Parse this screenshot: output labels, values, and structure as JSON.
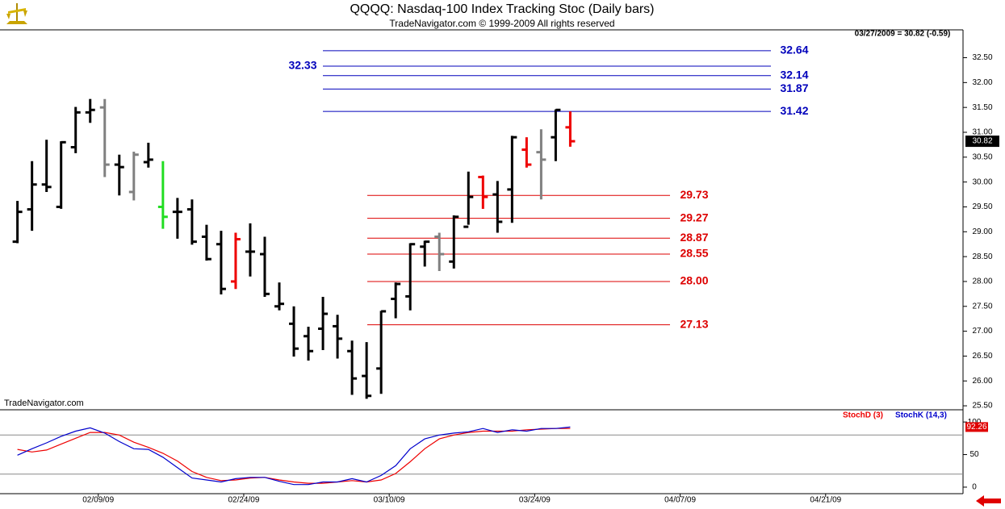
{
  "chart_data": [
    {
      "type": "ohlc",
      "title": "QQQQ:  Nasdaq-100 Index Tracking Stoc  (Daily bars)",
      "subtitle": "TradeNavigator.com © 1999-2009 All rights reserved",
      "annotations": [
        "03/27/2009 = 30.82 (-0.59)",
        "TradeNavigator.com"
      ],
      "xlim": [
        -1.2,
        65
      ],
      "ylim": [
        25.42,
        33.06
      ],
      "yticks": [
        {
          "value": 25.5,
          "label": "25.50"
        },
        {
          "value": 26,
          "label": "26.00"
        },
        {
          "value": 26.5,
          "label": "26.50"
        },
        {
          "value": 27,
          "label": "27.00"
        },
        {
          "value": 27.5,
          "label": "27.50"
        },
        {
          "value": 28,
          "label": "28.00"
        },
        {
          "value": 28.5,
          "label": "28.50"
        },
        {
          "value": 29,
          "label": "29.00"
        },
        {
          "value": 29.5,
          "label": "29.50"
        },
        {
          "value": 30,
          "label": "30.00"
        },
        {
          "value": 30.5,
          "label": "30.50"
        },
        {
          "value": 31,
          "label": "31.00"
        },
        {
          "value": 31.5,
          "label": "31.50"
        },
        {
          "value": 32,
          "label": "32.00"
        },
        {
          "value": 32.5,
          "label": "32.50"
        }
      ],
      "open": [
        28.8,
        29.45,
        29.95,
        29.5,
        30.7,
        31.4,
        31.5,
        30.35,
        29.8,
        30.4,
        29.5,
        29.4,
        29.45,
        28.9,
        28.75,
        28.0,
        28.6,
        28.55,
        27.5,
        27.15,
        26.9,
        27.05,
        27.1,
        26.6,
        26.1,
        26.25,
        27.65,
        27.7,
        28.7,
        28.9,
        28.4,
        29.1,
        30.1,
        29.75,
        29.85,
        30.65,
        30.6,
        30.9,
        31.1
      ],
      "high": [
        29.62,
        30.42,
        30.85,
        30.82,
        31.51,
        31.67,
        31.67,
        30.55,
        30.61,
        30.79,
        30.42,
        29.68,
        29.65,
        29.14,
        29.02,
        28.98,
        29.17,
        28.9,
        27.98,
        27.5,
        27.09,
        27.69,
        27.33,
        26.81,
        26.78,
        27.41,
        27.98,
        28.77,
        28.82,
        28.98,
        29.33,
        30.21,
        30.13,
        30.02,
        30.93,
        30.9,
        31.06,
        31.46,
        31.42
      ],
      "low": [
        28.77,
        29.02,
        29.8,
        29.46,
        30.58,
        31.19,
        30.1,
        29.73,
        29.63,
        30.29,
        29.06,
        28.86,
        28.74,
        28.42,
        27.74,
        27.85,
        28.1,
        27.69,
        27.42,
        26.49,
        26.41,
        26.62,
        26.45,
        25.72,
        25.64,
        25.74,
        27.26,
        27.42,
        28.3,
        28.21,
        28.26,
        29.14,
        29.46,
        28.98,
        29.18,
        30.29,
        29.65,
        30.42,
        30.71
      ],
      "close": [
        29.4,
        29.95,
        29.9,
        30.8,
        31.4,
        31.45,
        30.35,
        30.3,
        30.55,
        30.45,
        29.3,
        29.4,
        28.8,
        28.45,
        27.85,
        28.85,
        28.6,
        27.75,
        27.55,
        26.65,
        26.6,
        27.35,
        26.85,
        26.05,
        25.7,
        27.4,
        27.95,
        28.75,
        28.8,
        28.55,
        29.3,
        29.7,
        29.7,
        29.2,
        30.9,
        30.35,
        30.45,
        31.45,
        30.82
      ],
      "colors": [
        "#000000",
        "#000000",
        "#000000",
        "#000000",
        "#000000",
        "#000000",
        "#808080",
        "#000000",
        "#808080",
        "#000000",
        "#22dd22",
        "#000000",
        "#000000",
        "#000000",
        "#000000",
        "#ee0000",
        "#000000",
        "#000000",
        "#000000",
        "#000000",
        "#000000",
        "#000000",
        "#000000",
        "#000000",
        "#000000",
        "#000000",
        "#000000",
        "#000000",
        "#000000",
        "#808080",
        "#000000",
        "#000000",
        "#ee0000",
        "#000000",
        "#000000",
        "#ee0000",
        "#808080",
        "#000000",
        "#ee0000"
      ],
      "levels": [
        {
          "color": "#0000bb",
          "values": [
            32.64,
            32.33,
            32.14,
            31.87,
            31.42
          ]
        },
        {
          "color": "#dd0000",
          "values": [
            29.73,
            29.27,
            28.87,
            28.55,
            28,
            27.13
          ],
          "value_labels": [
            "29.73",
            "29.27",
            "28.87",
            "28.55",
            "28.00",
            "27.13"
          ]
        }
      ]
    },
    {
      "type": "line",
      "xlim": [
        -1.2,
        65
      ],
      "ylim": [
        -10,
        118.75
      ],
      "yticks": [
        0,
        50,
        100
      ],
      "guide_lines": [
        20,
        80
      ],
      "xticks": [
        {
          "value": 5,
          "label": "02/09/09"
        },
        {
          "value": 15,
          "label": "02/24/09"
        },
        {
          "value": 25,
          "label": "03/10/09"
        },
        {
          "value": 35,
          "label": "03/24/09"
        },
        {
          "value": 45,
          "label": "04/07/09"
        },
        {
          "value": 55,
          "label": "04/21/09"
        }
      ],
      "series": [
        {
          "name": "StochD (3)",
          "color": "#ee0000",
          "values": [
            58,
            54,
            57,
            66,
            75,
            84,
            84,
            80,
            69,
            61,
            52,
            40,
            24,
            15,
            10,
            11,
            14,
            15,
            11,
            8,
            6,
            6,
            8,
            10,
            8,
            11,
            21,
            39,
            59,
            74,
            80,
            84,
            86,
            86,
            86,
            88,
            89,
            90,
            90
          ]
        },
        {
          "name": "StochK (14,3)",
          "color": "#0000cc",
          "values": [
            49,
            59,
            68,
            78,
            86,
            91,
            83,
            70,
            59,
            58,
            46,
            30,
            14,
            11,
            8,
            13,
            15,
            15,
            9,
            4,
            4,
            8,
            8,
            13,
            8,
            18,
            33,
            59,
            74,
            80,
            83,
            85,
            90,
            84,
            88,
            86,
            90,
            90,
            92.26
          ]
        }
      ]
    }
  ]
}
